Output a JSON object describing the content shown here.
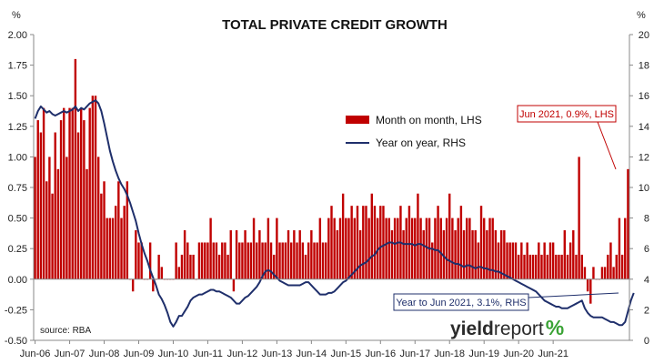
{
  "chart_data": {
    "type": "bar",
    "title": "TOTAL PRIVATE CREDIT GROWTH",
    "left_unit": "%",
    "right_unit": "%",
    "left_axis": {
      "ylim": [
        -0.5,
        2.0
      ],
      "ticks": [
        "-0.50",
        "-0.25",
        "0.00",
        "0.25",
        "0.50",
        "0.75",
        "1.00",
        "1.25",
        "1.50",
        "1.75",
        "2.00"
      ]
    },
    "right_axis": {
      "ylim": [
        0,
        20
      ],
      "ticks": [
        "0",
        "2",
        "4",
        "6",
        "8",
        "10",
        "12",
        "14",
        "16",
        "18",
        "20"
      ]
    },
    "x_tick_labels": [
      "Jun-06",
      "Jun-07",
      "Jun-08",
      "Jun-09",
      "Jun-10",
      "Jun-11",
      "Jun-12",
      "Jun-13",
      "Jun-14",
      "Jun-15",
      "Jun-16",
      "Jun-17",
      "Jun-18",
      "Jun-19",
      "Jun-20",
      "Jun-21"
    ],
    "grid": false,
    "legend_position": "upper-right",
    "series": [
      {
        "name": "Month on month, LHS",
        "type": "bar",
        "axis": "left",
        "color": "#c00000",
        "start": "Jun-06",
        "values": [
          1.0,
          1.3,
          1.2,
          1.4,
          0.8,
          1.0,
          0.7,
          1.2,
          0.9,
          1.3,
          1.4,
          1.0,
          1.4,
          1.4,
          1.8,
          1.2,
          1.4,
          1.3,
          0.9,
          1.4,
          1.5,
          1.5,
          1.0,
          0.7,
          0.8,
          0.5,
          0.5,
          0.5,
          0.6,
          0.8,
          0.5,
          0.6,
          0.8,
          0.0,
          -0.1,
          0.4,
          0.3,
          0.3,
          0.0,
          0.0,
          0.3,
          -0.1,
          0.0,
          0.2,
          0.1,
          0.0,
          0.0,
          0.0,
          0.0,
          0.3,
          0.1,
          0.2,
          0.4,
          0.3,
          0.2,
          0.2,
          0.0,
          0.3,
          0.3,
          0.3,
          0.3,
          0.5,
          0.3,
          0.3,
          0.2,
          0.3,
          0.3,
          0.2,
          0.4,
          -0.1,
          0.4,
          0.3,
          0.3,
          0.4,
          0.3,
          0.3,
          0.5,
          0.3,
          0.4,
          0.3,
          0.3,
          0.5,
          0.3,
          0.2,
          0.5,
          0.3,
          0.3,
          0.3,
          0.4,
          0.3,
          0.4,
          0.3,
          0.4,
          0.3,
          0.2,
          0.3,
          0.4,
          0.3,
          0.3,
          0.5,
          0.3,
          0.3,
          0.5,
          0.6,
          0.5,
          0.4,
          0.5,
          0.7,
          0.5,
          0.5,
          0.6,
          0.5,
          0.6,
          0.4,
          0.6,
          0.6,
          0.5,
          0.7,
          0.6,
          0.5,
          0.6,
          0.6,
          0.5,
          0.5,
          0.4,
          0.5,
          0.5,
          0.6,
          0.4,
          0.5,
          0.6,
          0.5,
          0.5,
          0.7,
          0.5,
          0.4,
          0.5,
          0.5,
          0.3,
          0.5,
          0.6,
          0.5,
          0.4,
          0.5,
          0.7,
          0.5,
          0.4,
          0.5,
          0.6,
          0.4,
          0.5,
          0.5,
          0.4,
          0.4,
          0.3,
          0.6,
          0.5,
          0.4,
          0.5,
          0.5,
          0.4,
          0.3,
          0.4,
          0.4,
          0.3,
          0.3,
          0.3,
          0.3,
          0.2,
          0.3,
          0.2,
          0.3,
          0.2,
          0.2,
          0.2,
          0.3,
          0.2,
          0.3,
          0.2,
          0.3,
          0.3,
          0.2,
          0.2,
          0.2,
          0.4,
          0.2,
          0.3,
          0.4,
          0.2,
          1.0,
          0.2,
          0.1,
          -0.1,
          -0.2,
          0.1,
          0.0,
          0.0,
          0.1,
          0.1,
          0.2,
          0.3,
          0.1,
          0.2,
          0.5,
          0.2,
          0.5,
          0.9
        ]
      },
      {
        "name": "Year on year, RHS",
        "type": "line",
        "axis": "right",
        "color": "#1f2f6b",
        "start": "Jun-06",
        "values": [
          14.5,
          15.0,
          15.3,
          15.1,
          14.9,
          15.0,
          14.8,
          14.7,
          14.8,
          14.9,
          15.0,
          14.9,
          15.0,
          15.1,
          15.3,
          15.0,
          15.2,
          15.1,
          15.3,
          15.5,
          15.6,
          15.7,
          15.5,
          15.0,
          14.2,
          13.3,
          12.4,
          11.7,
          11.1,
          10.6,
          10.2,
          9.9,
          9.5,
          9.0,
          8.4,
          7.8,
          7.0,
          6.3,
          5.7,
          5.2,
          4.6,
          4.1,
          3.6,
          3.0,
          2.7,
          2.3,
          1.8,
          1.2,
          0.9,
          1.2,
          1.6,
          1.6,
          1.9,
          2.2,
          2.6,
          2.8,
          2.9,
          3.0,
          3.0,
          3.1,
          3.2,
          3.3,
          3.3,
          3.2,
          3.2,
          3.1,
          3.0,
          2.9,
          2.8,
          2.6,
          2.4,
          2.4,
          2.6,
          2.8,
          2.9,
          3.1,
          3.3,
          3.5,
          3.8,
          4.2,
          4.5,
          4.6,
          4.5,
          4.3,
          4.1,
          3.9,
          3.8,
          3.7,
          3.6,
          3.6,
          3.6,
          3.6,
          3.6,
          3.7,
          3.8,
          3.8,
          3.6,
          3.4,
          3.2,
          3.0,
          3.0,
          3.0,
          3.1,
          3.1,
          3.2,
          3.4,
          3.6,
          3.8,
          3.9,
          4.1,
          4.3,
          4.5,
          4.7,
          4.9,
          5.0,
          5.1,
          5.3,
          5.5,
          5.6,
          5.9,
          6.1,
          6.2,
          6.3,
          6.4,
          6.4,
          6.3,
          6.4,
          6.4,
          6.3,
          6.3,
          6.3,
          6.3,
          6.2,
          6.3,
          6.3,
          6.2,
          6.1,
          6.0,
          6.0,
          5.9,
          5.9,
          5.7,
          5.5,
          5.3,
          5.2,
          5.1,
          5.0,
          5.0,
          4.9,
          4.8,
          4.9,
          4.9,
          4.8,
          4.7,
          4.8,
          4.8,
          4.7,
          4.7,
          4.6,
          4.6,
          4.5,
          4.5,
          4.4,
          4.3,
          4.2,
          4.1,
          4.0,
          3.9,
          3.8,
          3.7,
          3.6,
          3.5,
          3.4,
          3.3,
          3.2,
          3.0,
          2.8,
          2.6,
          2.5,
          2.4,
          2.3,
          2.2,
          2.2,
          2.1,
          2.1,
          2.1,
          2.2,
          2.3,
          2.4,
          2.5,
          2.6,
          2.1,
          1.8,
          1.6,
          1.5,
          1.5,
          1.5,
          1.5,
          1.4,
          1.3,
          1.2,
          1.2,
          1.1,
          1.0,
          1.0,
          1.2,
          1.9,
          2.6,
          3.1
        ]
      }
    ],
    "annotations": [
      {
        "text": "Jun 2021, 0.9%, LHS",
        "color": "#c00000"
      },
      {
        "text": "Year to Jun 2021, 3.1%, RHS",
        "color": "#1f2f6b"
      }
    ],
    "source_note": "source: RBA",
    "logo": {
      "part1": "yield",
      "part2": "report",
      "symbol": "%"
    }
  }
}
